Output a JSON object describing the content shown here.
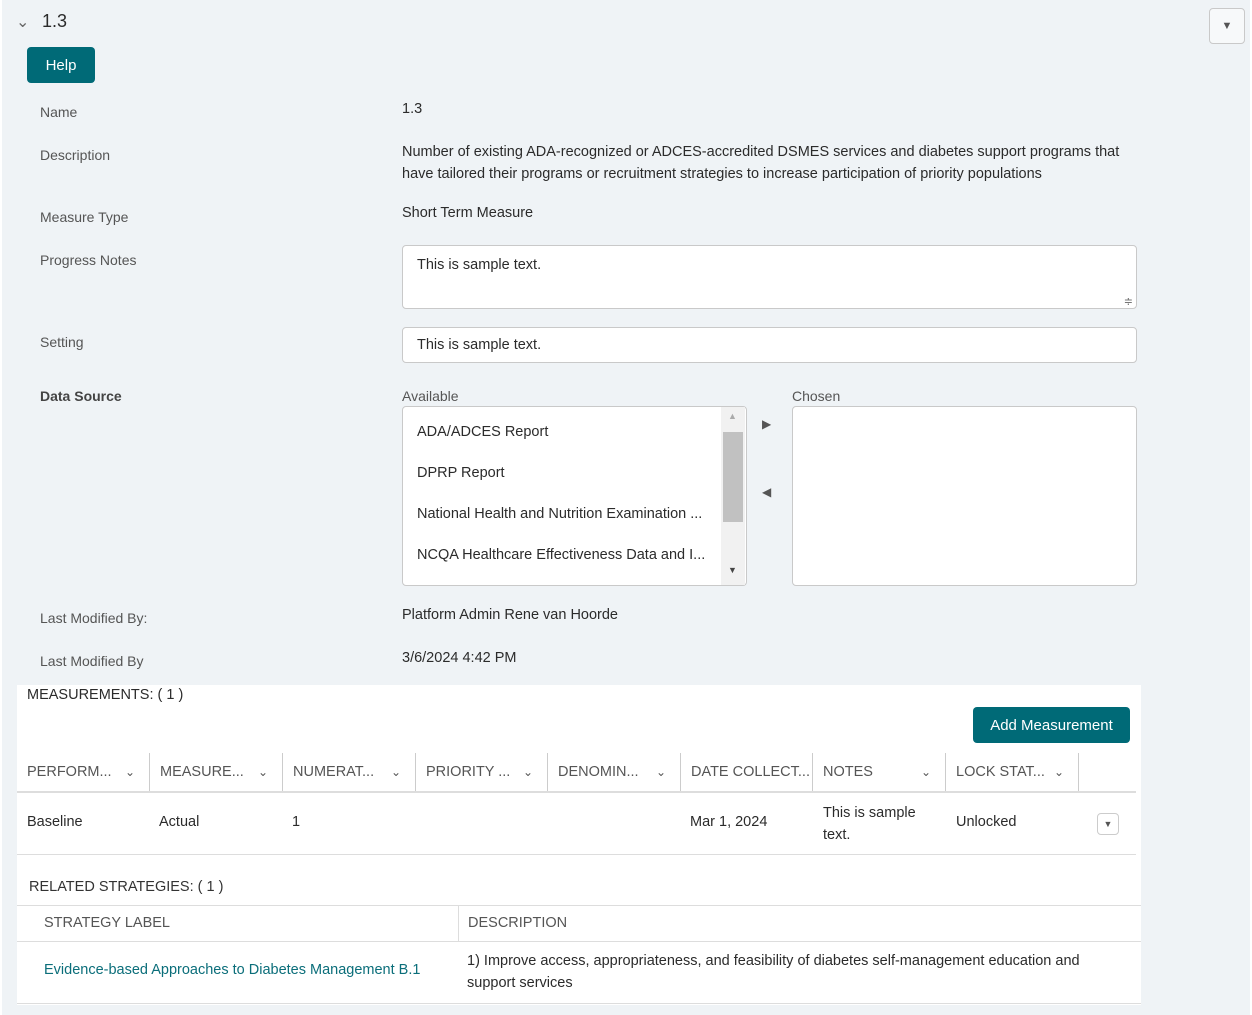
{
  "header": {
    "title": "1.3",
    "help_label": "Help"
  },
  "fields": {
    "name_label": "Name",
    "name_value": "1.3",
    "description_label": "Description",
    "description_value": "Number of existing ADA-recognized or ADCES-accredited DSMES services and diabetes support programs that have tailored their programs or recruitment strategies to increase participation of priority populations",
    "measure_type_label": "Measure Type",
    "measure_type_value": "Short Term Measure",
    "progress_notes_label": "Progress Notes",
    "progress_notes_value": "This is sample text.",
    "setting_label": "Setting",
    "setting_value": "This is sample text.",
    "data_source_label": "Data Source",
    "last_modified_by_label": "Last Modified By:",
    "last_modified_by_value": "Platform Admin Rene van Hoorde",
    "last_modified_label": "Last Modified By",
    "last_modified_value": "3/6/2024 4:42 PM"
  },
  "data_source": {
    "available_label": "Available",
    "chosen_label": "Chosen",
    "available": [
      "ADA/ADCES Report",
      "DPRP Report",
      "National Health and Nutrition Examination ...",
      "NCQA Healthcare Effectiveness Data and I..."
    ]
  },
  "measurements": {
    "title": "MEASUREMENTS:",
    "count": "( 1 )",
    "add_label": "Add Measurement",
    "columns": [
      "PERFORM...",
      "MEASURE...",
      "NUMERAT...",
      "PRIORITY ...",
      "DENOMIN...",
      "DATE COLLECT...",
      "NOTES",
      "LOCK STAT..."
    ],
    "rows": [
      [
        "Baseline",
        "Actual",
        "1",
        "",
        "",
        "Mar 1, 2024",
        "This is sample text.",
        "Unlocked"
      ]
    ]
  },
  "strategies": {
    "title": "RELATED STRATEGIES:",
    "count": "( 1 )",
    "columns": [
      "STRATEGY LABEL",
      "DESCRIPTION"
    ],
    "rows": [
      [
        "Evidence-based Approaches to Diabetes Management B.1",
        "1) Improve access, appropriateness, and feasibility of diabetes self-management education and support services"
      ]
    ]
  },
  "colors": {
    "accent": "#006a77",
    "link": "#0b6e7a"
  }
}
